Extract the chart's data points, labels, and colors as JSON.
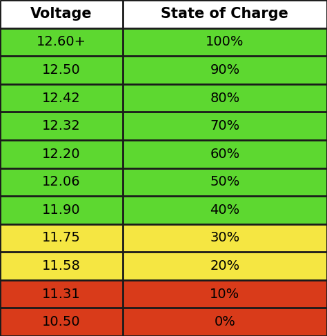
{
  "col1_header": "Voltage",
  "col2_header": "State of Charge",
  "rows": [
    {
      "voltage": "12.60+",
      "charge": "100%",
      "color": "#5DD830"
    },
    {
      "voltage": "12.50",
      "charge": "90%",
      "color": "#5DD830"
    },
    {
      "voltage": "12.42",
      "charge": "80%",
      "color": "#5DD830"
    },
    {
      "voltage": "12.32",
      "charge": "70%",
      "color": "#5DD830"
    },
    {
      "voltage": "12.20",
      "charge": "60%",
      "color": "#5DD830"
    },
    {
      "voltage": "12.06",
      "charge": "50%",
      "color": "#5DD830"
    },
    {
      "voltage": "11.90",
      "charge": "40%",
      "color": "#5DD830"
    },
    {
      "voltage": "11.75",
      "charge": "30%",
      "color": "#F5E642"
    },
    {
      "voltage": "11.58",
      "charge": "20%",
      "color": "#F5E642"
    },
    {
      "voltage": "11.31",
      "charge": "10%",
      "color": "#D93B1A"
    },
    {
      "voltage": "10.50",
      "charge": "0%",
      "color": "#D93B1A"
    }
  ],
  "header_bg": "#ffffff",
  "border_color": "#1a1a1a",
  "text_color": "#000000",
  "header_fontsize": 15,
  "cell_fontsize": 14,
  "col_split": 0.375,
  "fig_width": 4.74,
  "fig_height": 4.87,
  "dpi": 100
}
